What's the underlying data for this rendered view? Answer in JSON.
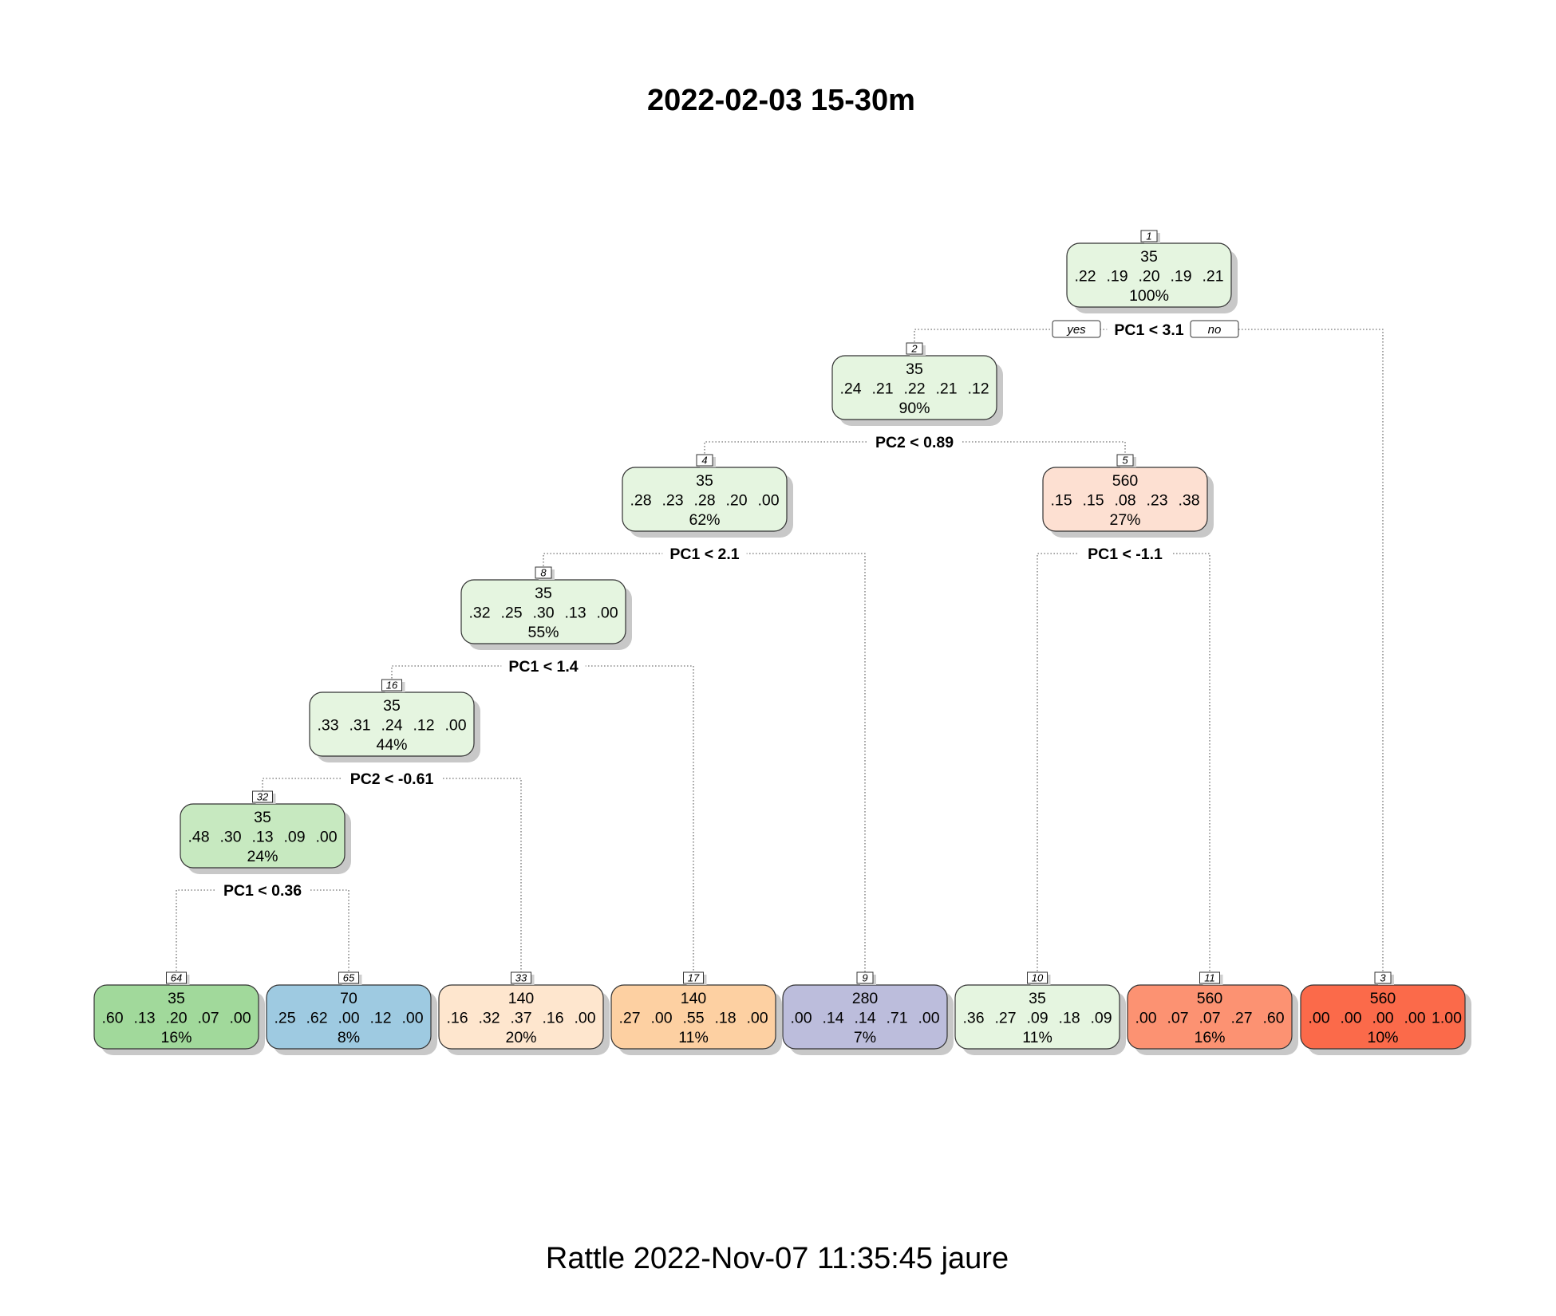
{
  "title": "2022-02-03 15-30m",
  "footer": "Rattle 2022-Nov-07 11:35:45 jaure",
  "branch_labels": {
    "yes": "yes",
    "no": "no"
  },
  "nodes": [
    {
      "id": "1",
      "label": "35",
      "probs": [
        ".22",
        ".19",
        ".20",
        ".19",
        ".21"
      ],
      "percent": "100%",
      "split": "PC1 < 3.1",
      "color": "#e5f5e0"
    },
    {
      "id": "2",
      "label": "35",
      "probs": [
        ".24",
        ".21",
        ".22",
        ".21",
        ".12"
      ],
      "percent": "90%",
      "split": "PC2 < 0.89",
      "color": "#e5f5e0"
    },
    {
      "id": "4",
      "label": "35",
      "probs": [
        ".28",
        ".23",
        ".28",
        ".20",
        ".00"
      ],
      "percent": "62%",
      "split": "PC1 < 2.1",
      "color": "#e5f5e0"
    },
    {
      "id": "5",
      "label": "560",
      "probs": [
        ".15",
        ".15",
        ".08",
        ".23",
        ".38"
      ],
      "percent": "27%",
      "split": "PC1 < -1.1",
      "color": "#fde0d2"
    },
    {
      "id": "8",
      "label": "35",
      "probs": [
        ".32",
        ".25",
        ".30",
        ".13",
        ".00"
      ],
      "percent": "55%",
      "split": "PC1 < 1.4",
      "color": "#e5f5e0"
    },
    {
      "id": "16",
      "label": "35",
      "probs": [
        ".33",
        ".31",
        ".24",
        ".12",
        ".00"
      ],
      "percent": "44%",
      "split": "PC2 < -0.61",
      "color": "#e5f5e0"
    },
    {
      "id": "32",
      "label": "35",
      "probs": [
        ".48",
        ".30",
        ".13",
        ".09",
        ".00"
      ],
      "percent": "24%",
      "split": "PC1 < 0.36",
      "color": "#c7e9c0"
    },
    {
      "id": "64",
      "label": "35",
      "probs": [
        ".60",
        ".13",
        ".20",
        ".07",
        ".00"
      ],
      "percent": "16%",
      "split": "",
      "color": "#a1d99b"
    },
    {
      "id": "65",
      "label": "70",
      "probs": [
        ".25",
        ".62",
        ".00",
        ".12",
        ".00"
      ],
      "percent": "8%",
      "split": "",
      "color": "#9ecae1"
    },
    {
      "id": "33",
      "label": "140",
      "probs": [
        ".16",
        ".32",
        ".37",
        ".16",
        ".00"
      ],
      "percent": "20%",
      "split": "",
      "color": "#fee6ce"
    },
    {
      "id": "17",
      "label": "140",
      "probs": [
        ".27",
        ".00",
        ".55",
        ".18",
        ".00"
      ],
      "percent": "11%",
      "split": "",
      "color": "#fdd0a2"
    },
    {
      "id": "9",
      "label": "280",
      "probs": [
        ".00",
        ".14",
        ".14",
        ".71",
        ".00"
      ],
      "percent": "7%",
      "split": "",
      "color": "#bcbddc"
    },
    {
      "id": "10",
      "label": "35",
      "probs": [
        ".36",
        ".27",
        ".09",
        ".18",
        ".09"
      ],
      "percent": "11%",
      "split": "",
      "color": "#e5f5e0"
    },
    {
      "id": "11",
      "label": "560",
      "probs": [
        ".00",
        ".07",
        ".07",
        ".27",
        ".60"
      ],
      "percent": "16%",
      "split": "",
      "color": "#fc9272"
    },
    {
      "id": "3",
      "label": "560",
      "probs": [
        ".00",
        ".00",
        ".00",
        ".00",
        "1.00"
      ],
      "percent": "10%",
      "split": "",
      "color": "#fb6a4a"
    }
  ]
}
